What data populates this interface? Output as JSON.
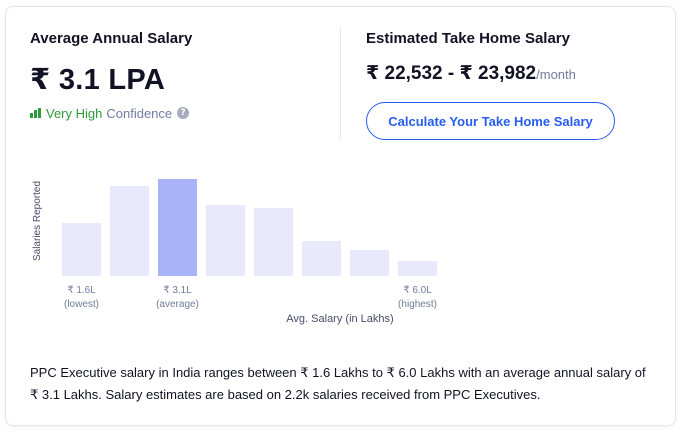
{
  "average": {
    "heading": "Average Annual Salary",
    "value": "₹ 3.1 LPA",
    "confidence_level": "Very High",
    "confidence_word": "Confidence",
    "info_glyph": "?",
    "confidence_color": "#2e9b3a"
  },
  "take_home": {
    "heading": "Estimated Take Home Salary",
    "min": "₹ 22,532",
    "separator": " - ",
    "max": "₹ 23,982",
    "unit": "/month",
    "button_label": "Calculate Your Take Home Salary",
    "accent_color": "#275df5"
  },
  "chart_data": {
    "type": "bar",
    "ylabel": "Salaries Reported",
    "xlabel": "Avg. Salary (in Lakhs)",
    "values": [
      53,
      90,
      97,
      71,
      68,
      35,
      26,
      15
    ],
    "highlight_index": 2,
    "ylim": [
      0,
      100
    ],
    "grid": false,
    "bar_color": "#e8e9fb",
    "highlight_color": "#a9b4f8",
    "tick_labels": [
      {
        "bar_index": 0,
        "value": "₹ 1.6L",
        "note": "(lowest)"
      },
      {
        "bar_index": 2,
        "value": "₹ 3.1L",
        "note": "(average)"
      },
      {
        "bar_index": 7,
        "value": "₹ 6.0L",
        "note": "(highest)"
      }
    ]
  },
  "description": "PPC Executive salary in India ranges between ₹ 1.6 Lakhs to ₹ 6.0 Lakhs with an average annual salary of ₹ 3.1 Lakhs. Salary estimates are based on 2.2k salaries received from PPC Executives."
}
